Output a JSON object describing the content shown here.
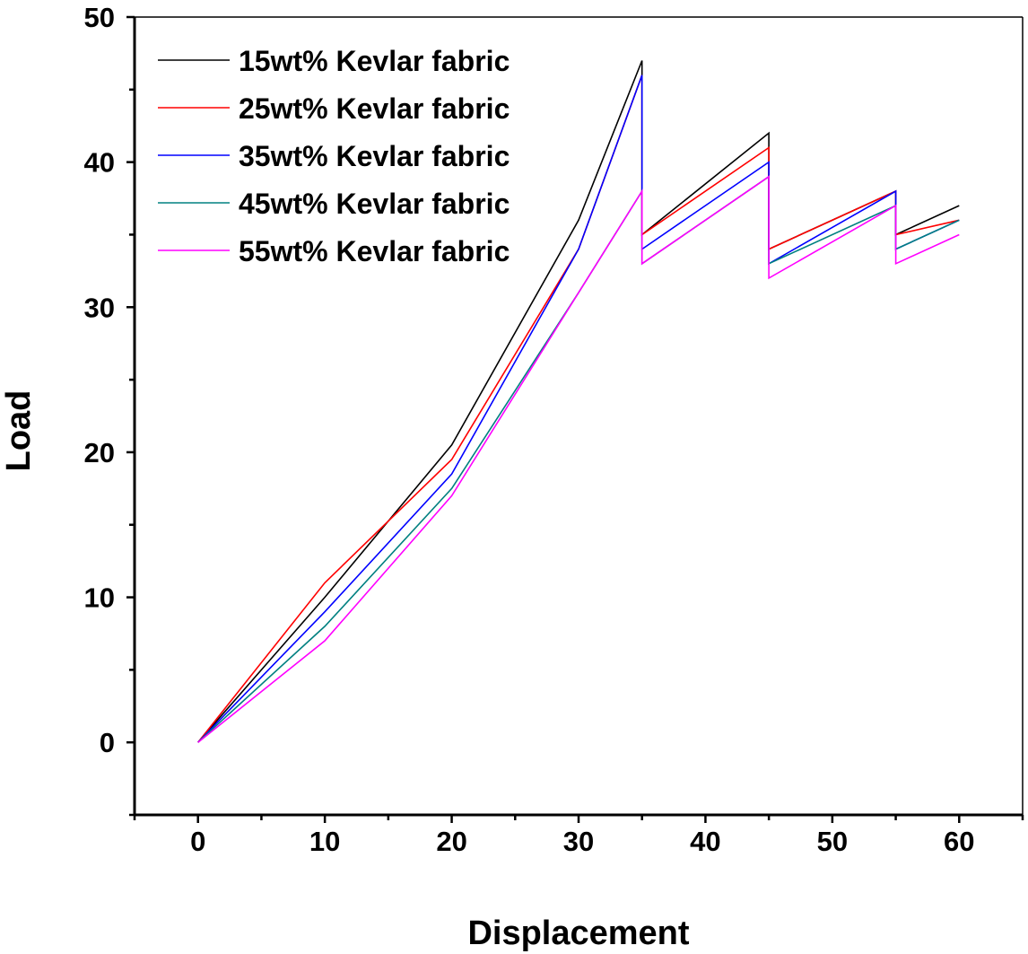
{
  "chart_data": {
    "type": "line",
    "title": "",
    "xlabel": "Displacement",
    "ylabel": "Load",
    "xlim": [
      -5,
      65
    ],
    "ylim": [
      -5,
      50
    ],
    "x_ticks": [
      0,
      10,
      20,
      30,
      40,
      50,
      60
    ],
    "y_ticks": [
      0,
      10,
      20,
      30,
      40,
      50
    ],
    "x_tick_labels": [
      "0",
      "10",
      "20",
      "30",
      "40",
      "50",
      "60"
    ],
    "y_tick_labels": [
      "0",
      "10",
      "20",
      "30",
      "40",
      "50"
    ],
    "grid": false,
    "legend_position": "top-left",
    "series": [
      {
        "name": "15wt% Kevlar fabric",
        "color": "#000000",
        "points": [
          [
            0,
            0
          ],
          [
            10,
            10
          ],
          [
            20,
            20.5
          ],
          [
            30,
            36
          ],
          [
            35,
            47
          ],
          [
            35,
            35
          ],
          [
            45,
            42
          ],
          [
            45,
            34
          ],
          [
            55,
            38
          ],
          [
            55,
            35
          ],
          [
            60,
            37
          ]
        ]
      },
      {
        "name": "25wt% Kevlar fabric",
        "color": "#ff0000",
        "points": [
          [
            0,
            0
          ],
          [
            10,
            11
          ],
          [
            20,
            19.5
          ],
          [
            30,
            34
          ],
          [
            35,
            46
          ],
          [
            35,
            35
          ],
          [
            45,
            41
          ],
          [
            45,
            34
          ],
          [
            55,
            38
          ],
          [
            55,
            35
          ],
          [
            60,
            36
          ]
        ]
      },
      {
        "name": "35wt% Kevlar fabric",
        "color": "#0000ff",
        "points": [
          [
            0,
            0
          ],
          [
            10,
            9
          ],
          [
            20,
            18.5
          ],
          [
            30,
            34
          ],
          [
            35,
            46
          ],
          [
            35,
            34
          ],
          [
            45,
            40
          ],
          [
            45,
            33
          ],
          [
            55,
            38
          ],
          [
            55,
            34
          ],
          [
            60,
            36
          ]
        ]
      },
      {
        "name": "45wt% Kevlar fabric",
        "color": "#008080",
        "points": [
          [
            0,
            0
          ],
          [
            10,
            8
          ],
          [
            20,
            17.5
          ],
          [
            30,
            31
          ],
          [
            35,
            38
          ],
          [
            35,
            33
          ],
          [
            45,
            39
          ],
          [
            45,
            33
          ],
          [
            55,
            37
          ],
          [
            55,
            34
          ],
          [
            60,
            36
          ]
        ]
      },
      {
        "name": "55wt% Kevlar fabric",
        "color": "#ff00ff",
        "points": [
          [
            0,
            0
          ],
          [
            10,
            7
          ],
          [
            20,
            17
          ],
          [
            30,
            31
          ],
          [
            35,
            38
          ],
          [
            35,
            33
          ],
          [
            45,
            39
          ],
          [
            45,
            32
          ],
          [
            55,
            37
          ],
          [
            55,
            33
          ],
          [
            60,
            35
          ]
        ]
      }
    ]
  }
}
